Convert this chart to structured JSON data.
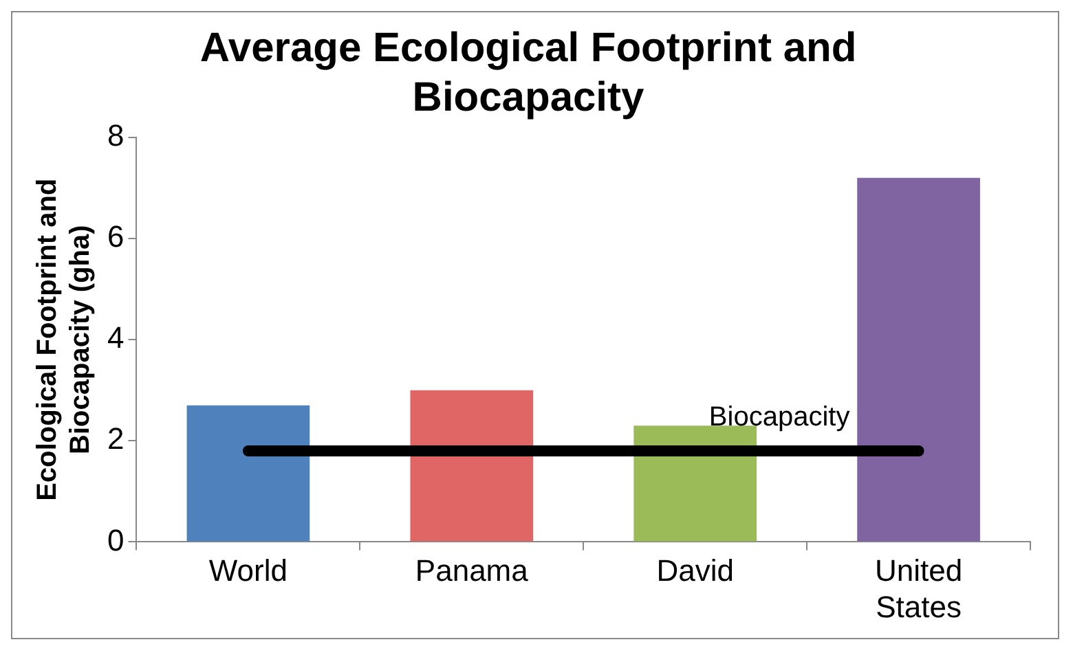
{
  "chart_data": {
    "type": "bar",
    "title": "Average Ecological Footprint and Biocapacity",
    "ylabel": "Ecological Footprint and Biocapacity (gha)",
    "categories": [
      "World",
      "Panama",
      "David",
      "United States"
    ],
    "series": [
      {
        "colors": [
          "#4f81bd",
          "#e06666",
          "#9bbb59",
          "#8064a2"
        ],
        "values": [
          2.7,
          3.0,
          2.3,
          7.2
        ]
      },
      {
        "type": "line",
        "name": "Biocapacity",
        "color": "#000000",
        "values": [
          1.8,
          1.8,
          1.8,
          1.8
        ]
      }
    ],
    "ylim": [
      0,
      8
    ],
    "yticks": [
      0,
      2,
      4,
      6,
      8
    ],
    "grid": false,
    "legend": false,
    "marker": "none"
  }
}
